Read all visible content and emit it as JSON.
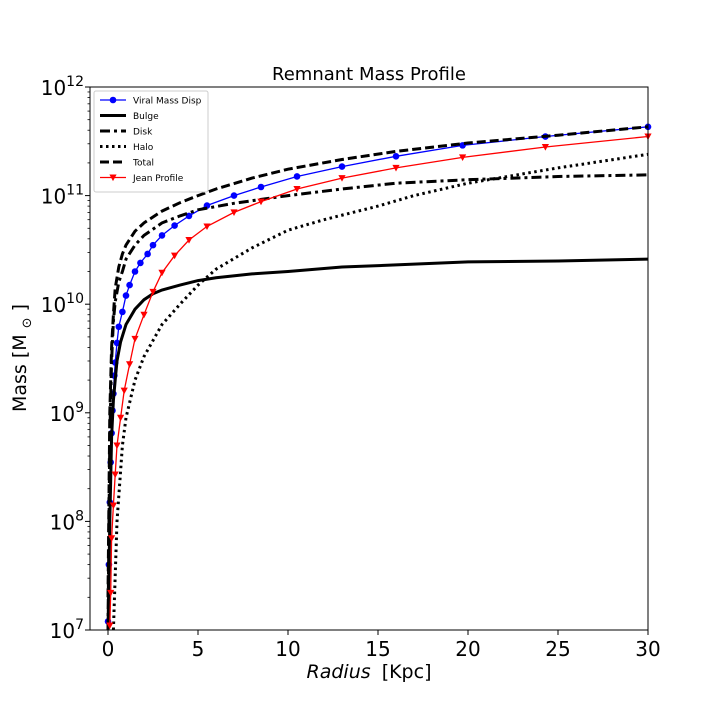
{
  "chart_data": {
    "type": "line",
    "title": "Remnant Mass Profile",
    "xlabel_main": "Radius",
    "xlabel_unit": "[Kpc]",
    "ylabel_main": "Mass [M",
    "ylabel_sub": "⊙",
    "ylabel_close": "]",
    "xlim": [
      -1,
      30
    ],
    "ylim": [
      10000000,
      1000000000000
    ],
    "yscale": "log",
    "legend_position": "top-left",
    "x_ticks": [
      {
        "value": 0,
        "label": "0"
      },
      {
        "value": 5,
        "label": "5"
      },
      {
        "value": 10,
        "label": "10"
      },
      {
        "value": 15,
        "label": "15"
      },
      {
        "value": 20,
        "label": "20"
      },
      {
        "value": 25,
        "label": "25"
      },
      {
        "value": 30,
        "label": "30"
      }
    ],
    "y_ticks": [
      {
        "value": 10000000,
        "base": "10",
        "exp": "7"
      },
      {
        "value": 100000000,
        "base": "10",
        "exp": "8"
      },
      {
        "value": 1000000000,
        "base": "10",
        "exp": "9"
      },
      {
        "value": 10000000000,
        "base": "10",
        "exp": "10"
      },
      {
        "value": 100000000000,
        "base": "10",
        "exp": "11"
      },
      {
        "value": 1000000000000,
        "base": "10",
        "exp": "12"
      }
    ],
    "series": [
      {
        "name": "Viral Mass Disp",
        "color": "#0000ff",
        "style": "solid",
        "marker": "circle",
        "x": [
          0,
          0.05,
          0.1,
          0.15,
          0.2,
          0.25,
          0.3,
          0.35,
          0.4,
          0.5,
          0.6,
          0.8,
          1.0,
          1.2,
          1.5,
          1.8,
          2.2,
          2.5,
          3.0,
          3.7,
          4.5,
          5.5,
          7.0,
          8.5,
          10.5,
          13.0,
          16.0,
          19.7,
          24.3,
          30.0
        ],
        "y": [
          12000000.0,
          40000000.0,
          150000000.0,
          350000000.0,
          650000000.0,
          1050000000.0,
          1500000000.0,
          2200000000.0,
          2900000000.0,
          4400000000.0,
          6200000000.0,
          8500000000.0,
          12000000000.0,
          15000000000.0,
          20000000000.0,
          24000000000.0,
          29000000000.0,
          35000000000.0,
          43000000000.0,
          53000000000.0,
          65000000000.0,
          81000000000.0,
          100000000000.0,
          120000000000.0,
          150000000000.0,
          185000000000.0,
          230000000000.0,
          290000000000.0,
          350000000000.0,
          430000000000.0
        ]
      },
      {
        "name": "Bulge",
        "color": "#000000",
        "style": "solid",
        "marker": "none",
        "x": [
          0,
          0.1,
          0.2,
          0.3,
          0.4,
          0.5,
          0.7,
          1.0,
          1.5,
          2.0,
          2.5,
          3.0,
          4.0,
          5.0,
          6.0,
          8.0,
          10.0,
          13.0,
          16.0,
          20.0,
          25.0,
          30.0
        ],
        "y": [
          10000000.0,
          100000000.0,
          600000000.0,
          1300000000.0,
          2000000000.0,
          3000000000.0,
          4500000000.0,
          6500000000.0,
          9000000000.0,
          11000000000.0,
          12500000000.0,
          13500000000.0,
          15000000000.0,
          16500000000.0,
          17500000000.0,
          19000000000.0,
          20000000000.0,
          22000000000.0,
          23000000000.0,
          24500000000.0,
          25000000000.0,
          26000000000.0
        ]
      },
      {
        "name": "Disk",
        "color": "#000000",
        "style": "dashdot",
        "marker": "none",
        "x": [
          0,
          0.1,
          0.2,
          0.3,
          0.4,
          0.6,
          0.8,
          1.0,
          1.5,
          2.0,
          3.0,
          4.0,
          5.0,
          7.0,
          10.0,
          13.0,
          16.0,
          20.0,
          25.0,
          30.0
        ],
        "y": [
          10000000.0,
          600000000.0,
          3000000000.0,
          7000000000.0,
          10500000000.0,
          16000000000.0,
          20000000000.0,
          26000000000.0,
          35000000000.0,
          43000000000.0,
          56000000000.0,
          65000000000.0,
          74000000000.0,
          85000000000.0,
          100000000000.0,
          115000000000.0,
          130000000000.0,
          140000000000.0,
          150000000000.0,
          155000000000.0
        ]
      },
      {
        "name": "Halo",
        "color": "#000000",
        "style": "dotted",
        "marker": "none",
        "x": [
          0.3,
          0.5,
          0.8,
          1.0,
          1.5,
          2.0,
          3.0,
          4.0,
          5.0,
          6.0,
          8.0,
          10.0,
          12.0,
          15.0,
          17.0,
          20.0,
          25.0,
          30.0
        ],
        "y": [
          10000000.0,
          100000000.0,
          500000000.0,
          900000000.0,
          2000000000.0,
          3300000000.0,
          6500000000.0,
          10000000000.0,
          15000000000.0,
          21000000000.0,
          33000000000.0,
          48000000000.0,
          60000000000.0,
          80000000000.0,
          100000000000.0,
          130000000000.0,
          180000000000.0,
          240000000000.0
        ]
      },
      {
        "name": "Total",
        "color": "#000000",
        "style": "dashed",
        "marker": "none",
        "x": [
          0,
          0.1,
          0.2,
          0.3,
          0.4,
          0.6,
          0.8,
          1.0,
          1.5,
          2.0,
          3.0,
          4.0,
          5.0,
          6.0,
          8.0,
          10.0,
          13.0,
          16.0,
          20.0,
          25.0,
          30.0
        ],
        "y": [
          20000000.0,
          1000000000.0,
          4000000000.0,
          8000000000.0,
          14000000000.0,
          22000000000.0,
          29000000000.0,
          35000000000.0,
          47000000000.0,
          56000000000.0,
          72000000000.0,
          86000000000.0,
          100000000000.0,
          115000000000.0,
          145000000000.0,
          175000000000.0,
          215000000000.0,
          255000000000.0,
          305000000000.0,
          360000000000.0,
          430000000000.0
        ]
      },
      {
        "name": "Jean Profile",
        "color": "#ff0000",
        "style": "solid",
        "marker": "triangle-down",
        "x": [
          0.1,
          0.15,
          0.2,
          0.3,
          0.4,
          0.5,
          0.7,
          0.9,
          1.2,
          1.5,
          2.0,
          2.5,
          3.0,
          3.7,
          4.5,
          5.5,
          7.0,
          8.5,
          10.5,
          13.0,
          16.0,
          19.7,
          24.3,
          30.0
        ],
        "y": [
          11000000.0,
          22000000.0,
          70000000.0,
          140000000.0,
          270000000.0,
          500000000.0,
          900000000.0,
          1600000000.0,
          2800000000.0,
          4800000000.0,
          8000000000.0,
          13000000000.0,
          19500000000.0,
          28000000000.0,
          39000000000.0,
          52000000000.0,
          70000000000.0,
          88000000000.0,
          115000000000.0,
          145000000000.0,
          180000000000.0,
          225000000000.0,
          280000000000.0,
          350000000000.0
        ]
      }
    ]
  }
}
